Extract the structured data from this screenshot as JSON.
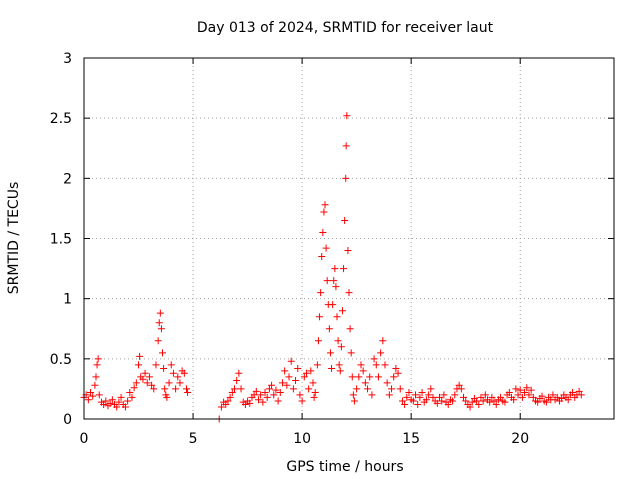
{
  "chart_data": {
    "type": "scatter",
    "title": "Day 013 of 2024, SRMTID for receiver laut",
    "xlabel": "GPS time / hours",
    "ylabel": "SRMTID / TECUs",
    "xlim": [
      0,
      24.3
    ],
    "ylim": [
      0,
      3
    ],
    "x_ticks": [
      0,
      5,
      10,
      15,
      20
    ],
    "x_tick_labels": [
      "0",
      "5",
      "10",
      "15",
      "20"
    ],
    "y_ticks": [
      0,
      0.5,
      1,
      1.5,
      2,
      2.5,
      3
    ],
    "y_tick_labels": [
      "0",
      "0.5",
      "1",
      "1.5",
      "2",
      "2.5",
      "3"
    ],
    "grid": true,
    "marker": "+",
    "color": "#ff0000",
    "series": [
      {
        "name": "SRMTID",
        "points": [
          [
            0.0,
            0.18
          ],
          [
            0.1,
            0.2
          ],
          [
            0.2,
            0.16
          ],
          [
            0.3,
            0.22
          ],
          [
            0.4,
            0.19
          ],
          [
            0.5,
            0.28
          ],
          [
            0.55,
            0.35
          ],
          [
            0.6,
            0.45
          ],
          [
            0.65,
            0.5
          ],
          [
            0.7,
            0.2
          ],
          [
            0.8,
            0.14
          ],
          [
            0.9,
            0.12
          ],
          [
            1.0,
            0.15
          ],
          [
            1.1,
            0.11
          ],
          [
            1.2,
            0.13
          ],
          [
            1.3,
            0.16
          ],
          [
            1.4,
            0.12
          ],
          [
            1.5,
            0.1
          ],
          [
            1.6,
            0.14
          ],
          [
            1.7,
            0.18
          ],
          [
            1.8,
            0.12
          ],
          [
            1.9,
            0.1
          ],
          [
            2.0,
            0.15
          ],
          [
            2.1,
            0.22
          ],
          [
            2.2,
            0.18
          ],
          [
            2.3,
            0.26
          ],
          [
            2.4,
            0.3
          ],
          [
            2.5,
            0.45
          ],
          [
            2.55,
            0.52
          ],
          [
            2.6,
            0.35
          ],
          [
            2.7,
            0.33
          ],
          [
            2.8,
            0.38
          ],
          [
            2.9,
            0.3
          ],
          [
            3.0,
            0.35
          ],
          [
            3.1,
            0.28
          ],
          [
            3.2,
            0.25
          ],
          [
            3.3,
            0.45
          ],
          [
            3.4,
            0.65
          ],
          [
            3.45,
            0.8
          ],
          [
            3.5,
            0.88
          ],
          [
            3.55,
            0.75
          ],
          [
            3.6,
            0.55
          ],
          [
            3.65,
            0.42
          ],
          [
            3.7,
            0.25
          ],
          [
            3.75,
            0.2
          ],
          [
            3.8,
            0.18
          ],
          [
            3.9,
            0.3
          ],
          [
            4.0,
            0.45
          ],
          [
            4.1,
            0.38
          ],
          [
            4.2,
            0.25
          ],
          [
            4.3,
            0.35
          ],
          [
            4.4,
            0.3
          ],
          [
            4.5,
            0.4
          ],
          [
            4.6,
            0.38
          ],
          [
            4.7,
            0.25
          ],
          [
            4.75,
            0.22
          ],
          [
            6.2,
            0.0
          ],
          [
            6.3,
            0.1
          ],
          [
            6.4,
            0.14
          ],
          [
            6.5,
            0.12
          ],
          [
            6.6,
            0.15
          ],
          [
            6.7,
            0.18
          ],
          [
            6.8,
            0.22
          ],
          [
            6.9,
            0.25
          ],
          [
            7.0,
            0.32
          ],
          [
            7.1,
            0.38
          ],
          [
            7.2,
            0.25
          ],
          [
            7.3,
            0.14
          ],
          [
            7.4,
            0.12
          ],
          [
            7.5,
            0.15
          ],
          [
            7.6,
            0.13
          ],
          [
            7.7,
            0.18
          ],
          [
            7.8,
            0.2
          ],
          [
            7.9,
            0.23
          ],
          [
            8.0,
            0.16
          ],
          [
            8.1,
            0.2
          ],
          [
            8.2,
            0.14
          ],
          [
            8.3,
            0.22
          ],
          [
            8.4,
            0.18
          ],
          [
            8.5,
            0.25
          ],
          [
            8.6,
            0.28
          ],
          [
            8.7,
            0.2
          ],
          [
            8.8,
            0.24
          ],
          [
            8.9,
            0.15
          ],
          [
            9.0,
            0.22
          ],
          [
            9.1,
            0.3
          ],
          [
            9.2,
            0.4
          ],
          [
            9.3,
            0.28
          ],
          [
            9.4,
            0.35
          ],
          [
            9.5,
            0.48
          ],
          [
            9.6,
            0.25
          ],
          [
            9.7,
            0.32
          ],
          [
            9.8,
            0.42
          ],
          [
            9.9,
            0.2
          ],
          [
            10.0,
            0.15
          ],
          [
            10.1,
            0.35
          ],
          [
            10.2,
            0.38
          ],
          [
            10.3,
            0.25
          ],
          [
            10.4,
            0.4
          ],
          [
            10.5,
            0.3
          ],
          [
            10.55,
            0.18
          ],
          [
            10.6,
            0.22
          ],
          [
            10.7,
            0.45
          ],
          [
            10.75,
            0.65
          ],
          [
            10.8,
            0.85
          ],
          [
            10.85,
            1.05
          ],
          [
            10.9,
            1.35
          ],
          [
            10.95,
            1.55
          ],
          [
            11.0,
            1.72
          ],
          [
            11.05,
            1.78
          ],
          [
            11.1,
            1.42
          ],
          [
            11.15,
            1.15
          ],
          [
            11.2,
            0.95
          ],
          [
            11.25,
            0.75
          ],
          [
            11.3,
            0.55
          ],
          [
            11.35,
            0.42
          ],
          [
            11.4,
            0.95
          ],
          [
            11.45,
            1.15
          ],
          [
            11.5,
            1.25
          ],
          [
            11.55,
            1.1
          ],
          [
            11.6,
            0.85
          ],
          [
            11.65,
            0.65
          ],
          [
            11.7,
            0.45
          ],
          [
            11.75,
            0.4
          ],
          [
            11.8,
            0.6
          ],
          [
            11.85,
            0.9
          ],
          [
            11.9,
            1.25
          ],
          [
            11.95,
            1.65
          ],
          [
            12.0,
            2.0
          ],
          [
            12.02,
            2.27
          ],
          [
            12.05,
            2.52
          ],
          [
            12.1,
            1.4
          ],
          [
            12.15,
            1.05
          ],
          [
            12.2,
            0.75
          ],
          [
            12.25,
            0.55
          ],
          [
            12.3,
            0.35
          ],
          [
            12.35,
            0.2
          ],
          [
            12.4,
            0.15
          ],
          [
            12.5,
            0.25
          ],
          [
            12.6,
            0.35
          ],
          [
            12.7,
            0.45
          ],
          [
            12.8,
            0.4
          ],
          [
            12.9,
            0.3
          ],
          [
            13.0,
            0.25
          ],
          [
            13.1,
            0.35
          ],
          [
            13.2,
            0.2
          ],
          [
            13.3,
            0.5
          ],
          [
            13.4,
            0.45
          ],
          [
            13.5,
            0.35
          ],
          [
            13.6,
            0.55
          ],
          [
            13.7,
            0.65
          ],
          [
            13.8,
            0.45
          ],
          [
            13.9,
            0.3
          ],
          [
            14.0,
            0.2
          ],
          [
            14.1,
            0.25
          ],
          [
            14.2,
            0.35
          ],
          [
            14.3,
            0.42
          ],
          [
            14.4,
            0.38
          ],
          [
            14.5,
            0.25
          ],
          [
            14.6,
            0.15
          ],
          [
            14.7,
            0.12
          ],
          [
            14.8,
            0.18
          ],
          [
            14.9,
            0.22
          ],
          [
            15.0,
            0.16
          ],
          [
            15.1,
            0.15
          ],
          [
            15.2,
            0.2
          ],
          [
            15.3,
            0.12
          ],
          [
            15.4,
            0.18
          ],
          [
            15.5,
            0.22
          ],
          [
            15.6,
            0.14
          ],
          [
            15.7,
            0.16
          ],
          [
            15.8,
            0.2
          ],
          [
            15.9,
            0.25
          ],
          [
            16.0,
            0.18
          ],
          [
            16.1,
            0.15
          ],
          [
            16.2,
            0.13
          ],
          [
            16.3,
            0.18
          ],
          [
            16.4,
            0.15
          ],
          [
            16.5,
            0.2
          ],
          [
            16.6,
            0.14
          ],
          [
            16.7,
            0.12
          ],
          [
            16.8,
            0.16
          ],
          [
            16.9,
            0.15
          ],
          [
            17.0,
            0.2
          ],
          [
            17.1,
            0.25
          ],
          [
            17.2,
            0.28
          ],
          [
            17.3,
            0.25
          ],
          [
            17.4,
            0.18
          ],
          [
            17.5,
            0.15
          ],
          [
            17.6,
            0.12
          ],
          [
            17.7,
            0.1
          ],
          [
            17.8,
            0.14
          ],
          [
            17.9,
            0.17
          ],
          [
            18.0,
            0.15
          ],
          [
            18.1,
            0.12
          ],
          [
            18.2,
            0.18
          ],
          [
            18.3,
            0.15
          ],
          [
            18.4,
            0.2
          ],
          [
            18.5,
            0.16
          ],
          [
            18.6,
            0.14
          ],
          [
            18.7,
            0.18
          ],
          [
            18.8,
            0.15
          ],
          [
            18.9,
            0.12
          ],
          [
            19.0,
            0.16
          ],
          [
            19.1,
            0.18
          ],
          [
            19.2,
            0.15
          ],
          [
            19.3,
            0.14
          ],
          [
            19.4,
            0.2
          ],
          [
            19.5,
            0.22
          ],
          [
            19.6,
            0.18
          ],
          [
            19.7,
            0.16
          ],
          [
            19.8,
            0.25
          ],
          [
            19.9,
            0.2
          ],
          [
            20.0,
            0.24
          ],
          [
            20.1,
            0.18
          ],
          [
            20.2,
            0.22
          ],
          [
            20.3,
            0.26
          ],
          [
            20.4,
            0.2
          ],
          [
            20.5,
            0.24
          ],
          [
            20.6,
            0.18
          ],
          [
            20.7,
            0.15
          ],
          [
            20.8,
            0.14
          ],
          [
            20.9,
            0.17
          ],
          [
            21.0,
            0.19
          ],
          [
            21.1,
            0.15
          ],
          [
            21.2,
            0.14
          ],
          [
            21.3,
            0.18
          ],
          [
            21.4,
            0.16
          ],
          [
            21.5,
            0.2
          ],
          [
            21.6,
            0.16
          ],
          [
            21.7,
            0.18
          ],
          [
            21.8,
            0.15
          ],
          [
            21.9,
            0.17
          ],
          [
            22.0,
            0.2
          ],
          [
            22.1,
            0.18
          ],
          [
            22.2,
            0.16
          ],
          [
            22.3,
            0.2
          ],
          [
            22.4,
            0.22
          ],
          [
            22.5,
            0.18
          ],
          [
            22.6,
            0.2
          ],
          [
            22.7,
            0.23
          ],
          [
            22.8,
            0.2
          ]
        ]
      }
    ]
  }
}
